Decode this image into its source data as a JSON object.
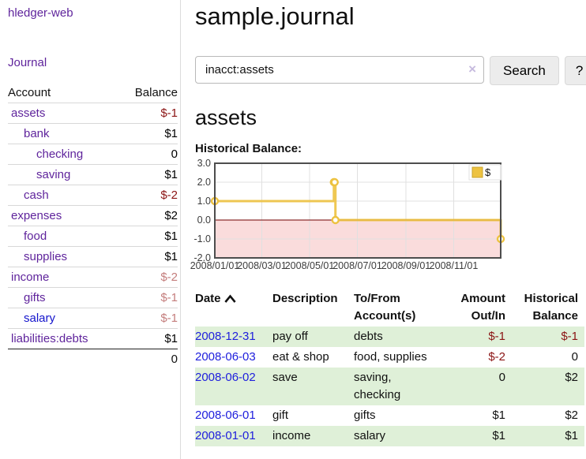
{
  "sidebar": {
    "brand": "hledger-web",
    "nav_journal": "Journal",
    "accounts": {
      "header_account": "Account",
      "header_balance": "Balance",
      "rows": [
        {
          "name": "assets",
          "depth": 1,
          "bold": true,
          "balance": "$-1",
          "amount_class": "neg-strong"
        },
        {
          "name": "bank",
          "depth": 2,
          "bold": true,
          "balance": "$1",
          "amount_class": ""
        },
        {
          "name": "checking",
          "depth": 3,
          "bold": true,
          "balance": "0",
          "amount_class": ""
        },
        {
          "name": "saving",
          "depth": 3,
          "bold": true,
          "balance": "$1",
          "amount_class": ""
        },
        {
          "name": "cash",
          "depth": 2,
          "bold": true,
          "balance": "$-2",
          "amount_class": "neg-strong"
        },
        {
          "name": "expenses",
          "depth": 1,
          "bold": false,
          "balance": "$2",
          "amount_class": ""
        },
        {
          "name": "food",
          "depth": 2,
          "bold": false,
          "balance": "$1",
          "amount_class": ""
        },
        {
          "name": "supplies",
          "depth": 2,
          "bold": false,
          "balance": "$1",
          "amount_class": ""
        },
        {
          "name": "income",
          "depth": 1,
          "bold": false,
          "balance": "$-2",
          "amount_class": "neg-light"
        },
        {
          "name": "gifts",
          "depth": 2,
          "bold": false,
          "balance": "$-1",
          "amount_class": "neg-light"
        },
        {
          "name": "salary",
          "depth": 2,
          "bold": false,
          "balance": "$-1",
          "amount_class": "neg-light",
          "link": "blue"
        },
        {
          "name": "liabilities:debts",
          "depth": 1,
          "bold": false,
          "balance": "$1",
          "amount_class": ""
        }
      ],
      "total": "0"
    }
  },
  "main": {
    "title": "sample.journal",
    "search": {
      "value": "inacct:assets",
      "clear_icon": "×",
      "button": "Search",
      "help": "?"
    },
    "account_heading": "assets",
    "section_label": "Historical Balance:",
    "register": {
      "headers": {
        "date": "Date",
        "description": "Description",
        "accounts": "To/From Account(s)",
        "amount": "Amount Out/In",
        "balance": "Historical Balance"
      },
      "rows": [
        {
          "date": "2008-12-31",
          "description": "pay off",
          "accounts": "debts",
          "amount": "$-1",
          "amount_class": "neg-strong",
          "balance": "$-1",
          "balance_class": "neg-strong"
        },
        {
          "date": "2008-06-03",
          "description": "eat & shop",
          "accounts": "food, supplies",
          "amount": "$-2",
          "amount_class": "neg-strong",
          "balance": "0",
          "balance_class": ""
        },
        {
          "date": "2008-06-02",
          "description": "save",
          "accounts": "saving, checking",
          "amount": "0",
          "amount_class": "",
          "balance": "$2",
          "balance_class": ""
        },
        {
          "date": "2008-06-01",
          "description": "gift",
          "accounts": "gifts",
          "amount": "$1",
          "amount_class": "",
          "balance": "$2",
          "balance_class": ""
        },
        {
          "date": "2008-01-01",
          "description": "income",
          "accounts": "salary",
          "amount": "$1",
          "amount_class": "",
          "balance": "$1",
          "balance_class": ""
        }
      ]
    }
  },
  "chart_data": {
    "type": "line",
    "step": true,
    "title": "Historical Balance:",
    "legend_label": "$",
    "legend_position": "top-right",
    "series_color": "#edc240",
    "x_start": "2008-01-01",
    "x_end": "2008-12-31",
    "xticks": [
      "2008/01/01",
      "2008/03/01",
      "2008/05/01",
      "2008/07/01",
      "2008/09/01",
      "2008/11/01"
    ],
    "yticks": [
      "3.0",
      "2.0",
      "1.0",
      "0.0",
      "-1.0",
      "-2.0"
    ],
    "ylim": [
      -2,
      3
    ],
    "points": [
      [
        "2008-01-01",
        1
      ],
      [
        "2008-06-01",
        2
      ],
      [
        "2008-06-02",
        2
      ],
      [
        "2008-06-03",
        0
      ],
      [
        "2008-12-31",
        -1
      ]
    ],
    "negative_region_color": "#fadcdc",
    "zero_line_color": "#8c2e2e",
    "grid": true
  }
}
